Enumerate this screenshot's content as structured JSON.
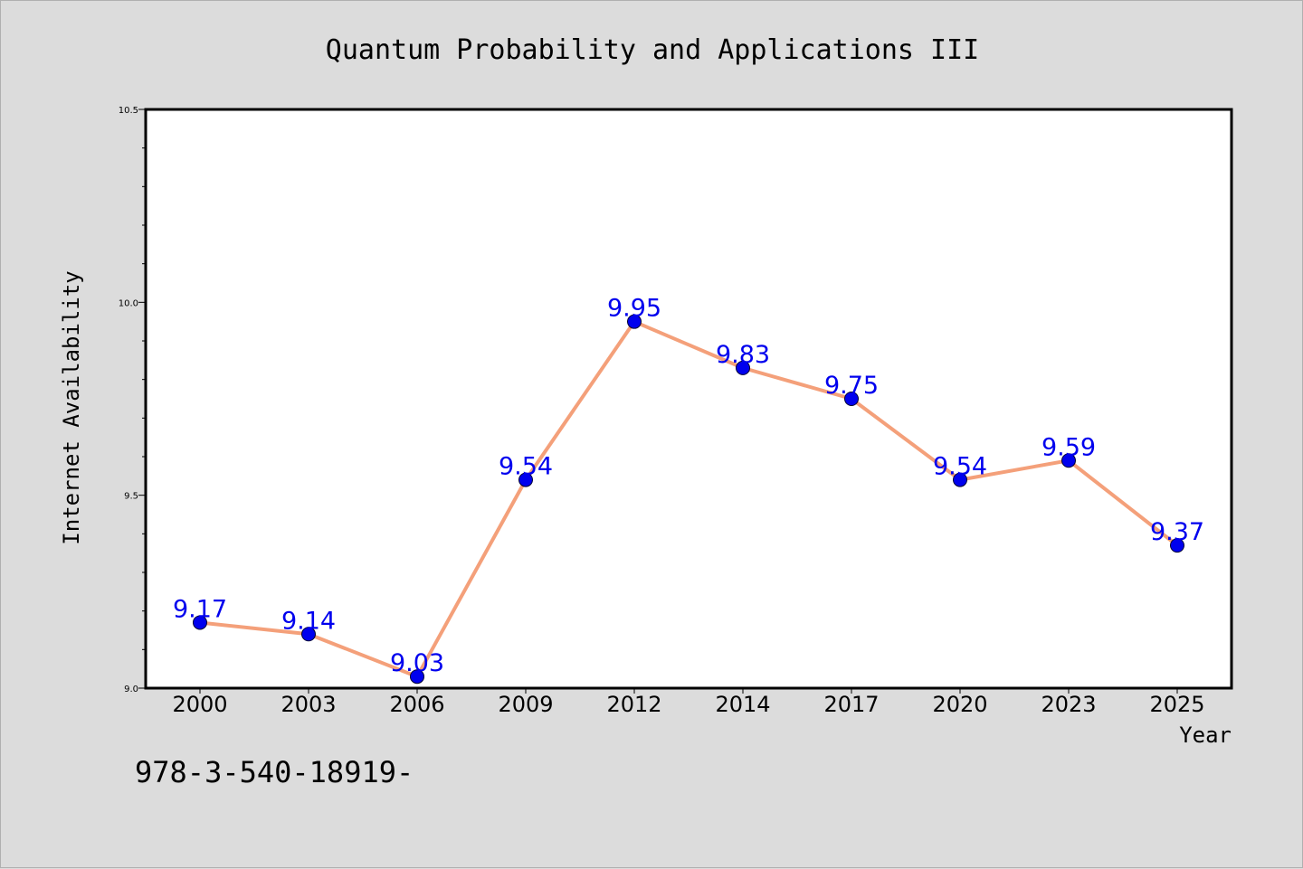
{
  "chart_data": {
    "type": "line",
    "title": "Quantum Probability and Applications III",
    "xlabel": "Year",
    "ylabel": "Internet Availability",
    "categories": [
      "2000",
      "2003",
      "2006",
      "2009",
      "2012",
      "2014",
      "2017",
      "2020",
      "2023",
      "2025"
    ],
    "values": [
      9.17,
      9.14,
      9.03,
      9.54,
      9.95,
      9.83,
      9.75,
      9.54,
      9.59,
      9.37
    ],
    "data_labels": [
      "9.17",
      "9.14",
      "9.03",
      "9.54",
      "9.95",
      "9.83",
      "9.75",
      "9.54",
      "9.59",
      "9.37"
    ],
    "ylim": [
      9.0,
      10.5
    ],
    "yticks": [
      "9.0",
      "9.5",
      "10.0",
      "10.5"
    ],
    "grid": false,
    "line_color": "#f4a07a",
    "marker_color": "#0000ee",
    "label_color": "#0000ee"
  },
  "footer": {
    "text": "978-3-540-18919-"
  }
}
